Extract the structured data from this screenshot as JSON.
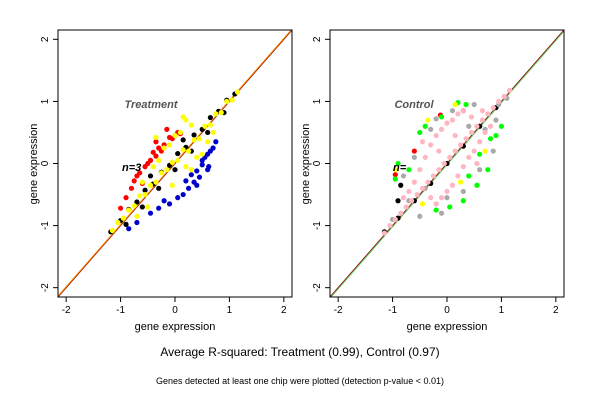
{
  "chart_data": [
    {
      "type": "scatter",
      "title": "Treatment",
      "annotation": "n=3",
      "xlabel": "gene expression",
      "ylabel": "gene expression",
      "xlim": [
        -2.15,
        2.15
      ],
      "ylim": [
        -2.15,
        2.15
      ],
      "xticks": [
        "-2",
        "-1",
        "0",
        "1",
        "2"
      ],
      "yticks": [
        "-2",
        "-1",
        "0",
        "1",
        "2"
      ],
      "xtick_values": [
        -2,
        -1,
        0,
        1,
        2
      ],
      "ytick_values": [
        -2,
        -1,
        0,
        1,
        2
      ],
      "grid": false,
      "reference_lines": [
        {
          "slope": 1,
          "intercept": 0,
          "color": "#8b0000"
        },
        {
          "slope": 1,
          "intercept": 0.015,
          "color": "#ff8c00"
        }
      ],
      "series": [
        {
          "color": "#000000",
          "values": [
            [
              -1.18,
              -1.1
            ],
            [
              -1.0,
              -0.92
            ],
            [
              -0.85,
              -0.74
            ],
            [
              -0.7,
              -0.62
            ],
            [
              -0.55,
              -0.43
            ],
            [
              -0.4,
              -0.33
            ],
            [
              -0.25,
              -0.14
            ],
            [
              -0.1,
              -0.03
            ],
            [
              0.05,
              0.16
            ],
            [
              0.2,
              0.26
            ],
            [
              0.35,
              0.46
            ],
            [
              0.5,
              0.55
            ],
            [
              0.65,
              0.74
            ],
            [
              0.8,
              0.84
            ],
            [
              0.95,
              1.02
            ],
            [
              1.1,
              1.12
            ],
            [
              -0.9,
              -0.98
            ],
            [
              -0.6,
              -0.7
            ],
            [
              -0.3,
              -0.4
            ],
            [
              0.0,
              -0.1
            ],
            [
              0.3,
              0.2
            ],
            [
              0.6,
              0.5
            ],
            [
              0.9,
              0.82
            ],
            [
              -0.45,
              -0.2
            ],
            [
              0.15,
              0.38
            ]
          ]
        },
        {
          "color": "#ff0000",
          "values": [
            [
              -0.75,
              -0.28
            ],
            [
              -0.65,
              -0.15
            ],
            [
              -0.55,
              -0.05
            ],
            [
              -0.45,
              0.05
            ],
            [
              -0.35,
              0.12
            ],
            [
              -0.3,
              0.25
            ],
            [
              -0.2,
              0.3
            ],
            [
              -0.1,
              0.42
            ],
            [
              0.0,
              0.45
            ],
            [
              -0.15,
              0.55
            ],
            [
              -0.05,
              0.4
            ],
            [
              0.1,
              0.48
            ],
            [
              -0.8,
              -0.4
            ],
            [
              -0.6,
              -0.32
            ],
            [
              -0.5,
              0.0
            ],
            [
              -0.25,
              0.2
            ],
            [
              0.05,
              0.5
            ],
            [
              -0.4,
              0.18
            ],
            [
              -0.7,
              -0.2
            ],
            [
              -0.9,
              -0.55
            ],
            [
              -1.0,
              -0.72
            ],
            [
              -0.35,
              0.35
            ]
          ]
        },
        {
          "color": "#0000cd",
          "values": [
            [
              0.2,
              -0.28
            ],
            [
              0.3,
              -0.18
            ],
            [
              0.4,
              -0.12
            ],
            [
              0.5,
              -0.02
            ],
            [
              0.55,
              0.1
            ],
            [
              0.6,
              0.15
            ],
            [
              0.45,
              -0.22
            ],
            [
              0.35,
              -0.3
            ],
            [
              0.65,
              0.2
            ],
            [
              0.7,
              0.25
            ],
            [
              0.5,
              0.05
            ],
            [
              0.25,
              -0.4
            ],
            [
              0.15,
              -0.5
            ],
            [
              0.4,
              -0.35
            ],
            [
              0.6,
              -0.1
            ],
            [
              0.75,
              0.35
            ],
            [
              -0.1,
              -0.65
            ],
            [
              -0.3,
              -0.72
            ],
            [
              -0.45,
              -0.8
            ],
            [
              -0.2,
              -0.6
            ],
            [
              0.05,
              -0.55
            ],
            [
              -0.7,
              -0.95
            ],
            [
              -0.85,
              -1.05
            ],
            [
              0.62,
              -0.05
            ]
          ]
        },
        {
          "color": "#ffff00",
          "values": [
            [
              -1.15,
              -1.08
            ],
            [
              -1.05,
              -0.95
            ],
            [
              -0.95,
              -0.88
            ],
            [
              -0.85,
              -0.75
            ],
            [
              -0.75,
              -0.68
            ],
            [
              -0.65,
              -0.52
            ],
            [
              -0.55,
              -0.5
            ],
            [
              -0.45,
              -0.35
            ],
            [
              -0.35,
              -0.3
            ],
            [
              -0.25,
              -0.15
            ],
            [
              -0.15,
              -0.1
            ],
            [
              -0.05,
              0.02
            ],
            [
              0.05,
              0.05
            ],
            [
              0.15,
              0.22
            ],
            [
              0.25,
              0.2
            ],
            [
              0.35,
              0.38
            ],
            [
              0.45,
              0.4
            ],
            [
              0.55,
              0.6
            ],
            [
              0.65,
              0.62
            ],
            [
              0.75,
              0.8
            ],
            [
              0.85,
              0.82
            ],
            [
              0.95,
              1.0
            ],
            [
              1.05,
              1.02
            ],
            [
              1.15,
              1.15
            ],
            [
              -0.2,
              0.25
            ],
            [
              0.0,
              0.45
            ],
            [
              -0.1,
              0.3
            ],
            [
              0.1,
              0.5
            ],
            [
              0.3,
              0.62
            ],
            [
              0.2,
              0.7
            ],
            [
              -0.3,
              0.05
            ],
            [
              -0.4,
              -0.05
            ],
            [
              -0.6,
              -0.3
            ],
            [
              0.4,
              0.1
            ],
            [
              0.5,
              0.15
            ],
            [
              0.3,
              -0.1
            ],
            [
              -0.5,
              -0.7
            ],
            [
              -0.7,
              -0.85
            ],
            [
              0.6,
              0.35
            ],
            [
              0.7,
              0.5
            ],
            [
              -0.35,
              0.42
            ],
            [
              0.15,
              0.75
            ],
            [
              -0.05,
              -0.35
            ],
            [
              0.2,
              -0.05
            ]
          ]
        }
      ]
    },
    {
      "type": "scatter",
      "title": "Control",
      "annotation": "n=",
      "xlabel": "gene expression",
      "ylabel": "gene expression",
      "xlim": [
        -2.15,
        2.15
      ],
      "ylim": [
        -2.15,
        2.15
      ],
      "xticks": [
        "-2",
        "-1",
        "0",
        "1",
        "2"
      ],
      "yticks": [
        "-2",
        "-1",
        "0",
        "1",
        "2"
      ],
      "xtick_values": [
        -2,
        -1,
        0,
        1,
        2
      ],
      "ytick_values": [
        -2,
        -1,
        0,
        1,
        2
      ],
      "grid": false,
      "reference_lines": [
        {
          "slope": 1,
          "intercept": 0,
          "color": "#8b0000"
        },
        {
          "slope": 1,
          "intercept": -0.02,
          "color": "#66cc66"
        }
      ],
      "series": [
        {
          "color": "#000000",
          "values": [
            [
              -1.15,
              -1.1
            ],
            [
              -0.9,
              -0.88
            ],
            [
              -0.6,
              -0.6
            ],
            [
              -0.3,
              -0.32
            ],
            [
              0.0,
              0.0
            ],
            [
              0.3,
              0.28
            ],
            [
              0.6,
              0.6
            ],
            [
              0.9,
              0.9
            ],
            [
              -0.9,
              -0.6
            ],
            [
              -0.85,
              -0.35
            ]
          ]
        },
        {
          "color": "#ff0000",
          "values": [
            [
              -0.12,
              0.78
            ],
            [
              -0.95,
              -0.18
            ],
            [
              0.3,
              0.85
            ],
            [
              -0.6,
              0.2
            ]
          ]
        },
        {
          "color": "#00ff00",
          "values": [
            [
              0.35,
              0.95
            ],
            [
              -0.1,
              0.75
            ],
            [
              -0.5,
              0.5
            ],
            [
              -0.9,
              0.0
            ],
            [
              0.8,
              0.4
            ],
            [
              0.9,
              0.45
            ],
            [
              0.6,
              0.15
            ],
            [
              0.75,
              -0.1
            ],
            [
              -0.2,
              -0.75
            ],
            [
              0.05,
              -0.7
            ],
            [
              0.4,
              -0.2
            ],
            [
              1.0,
              0.6
            ],
            [
              0.2,
              0.98
            ],
            [
              -0.7,
              -0.1
            ],
            [
              -0.95,
              -0.25
            ],
            [
              0.55,
              -0.35
            ],
            [
              0.3,
              -0.6
            ],
            [
              -0.4,
              0.6
            ]
          ]
        },
        {
          "color": "#ffff00",
          "values": [
            [
              -0.35,
              0.7
            ],
            [
              0.15,
              0.95
            ],
            [
              -0.95,
              -0.1
            ],
            [
              0.7,
              0.2
            ],
            [
              -0.45,
              -0.65
            ],
            [
              0.25,
              -0.3
            ]
          ]
        },
        {
          "color": "#a9a9a9",
          "values": [
            [
              -0.8,
              -0.2
            ],
            [
              -0.6,
              0.1
            ],
            [
              -0.3,
              0.55
            ],
            [
              0.1,
              0.85
            ],
            [
              0.5,
              0.95
            ],
            [
              0.9,
              0.7
            ],
            [
              0.85,
              0.2
            ],
            [
              0.6,
              -0.1
            ],
            [
              0.3,
              -0.45
            ],
            [
              -0.1,
              -0.8
            ],
            [
              -0.5,
              -0.85
            ],
            [
              -0.7,
              -0.6
            ],
            [
              -0.2,
              0.72
            ],
            [
              0.4,
              0.6
            ],
            [
              0.7,
              0.55
            ],
            [
              -0.4,
              -0.4
            ],
            [
              0.0,
              -0.55
            ],
            [
              0.95,
              0.95
            ],
            [
              1.1,
              1.05
            ],
            [
              -1.0,
              -0.9
            ]
          ]
        },
        {
          "color": "#ffb6c1",
          "values": [
            [
              -1.15,
              -1.12
            ],
            [
              -1.05,
              -1.0
            ],
            [
              -0.95,
              -0.9
            ],
            [
              -0.85,
              -0.8
            ],
            [
              -0.75,
              -0.7
            ],
            [
              -0.65,
              -0.6
            ],
            [
              -0.55,
              -0.5
            ],
            [
              -0.45,
              -0.4
            ],
            [
              -0.35,
              -0.3
            ],
            [
              -0.25,
              -0.2
            ],
            [
              -0.15,
              -0.1
            ],
            [
              -0.05,
              0.0
            ],
            [
              0.05,
              0.1
            ],
            [
              0.15,
              0.2
            ],
            [
              0.25,
              0.3
            ],
            [
              0.35,
              0.4
            ],
            [
              0.45,
              0.5
            ],
            [
              0.55,
              0.6
            ],
            [
              0.65,
              0.7
            ],
            [
              0.75,
              0.8
            ],
            [
              0.85,
              0.9
            ],
            [
              0.95,
              1.0
            ],
            [
              1.05,
              1.08
            ],
            [
              1.15,
              1.18
            ],
            [
              -0.6,
              -0.3
            ],
            [
              -0.5,
              -0.1
            ],
            [
              -0.4,
              0.1
            ],
            [
              -0.3,
              0.3
            ],
            [
              -0.2,
              0.45
            ],
            [
              -0.1,
              0.55
            ],
            [
              0.0,
              0.65
            ],
            [
              0.1,
              0.7
            ],
            [
              0.2,
              0.8
            ],
            [
              0.3,
              0.85
            ],
            [
              -0.7,
              -0.45
            ],
            [
              0.6,
              0.35
            ],
            [
              0.5,
              0.2
            ],
            [
              0.4,
              0.1
            ],
            [
              0.3,
              -0.05
            ],
            [
              0.2,
              -0.2
            ],
            [
              0.1,
              -0.35
            ],
            [
              0.0,
              -0.45
            ],
            [
              -0.1,
              -0.55
            ],
            [
              -0.2,
              -0.65
            ],
            [
              0.7,
              0.5
            ],
            [
              0.8,
              0.6
            ],
            [
              -0.8,
              -0.55
            ],
            [
              -0.3,
              -0.55
            ],
            [
              0.45,
              0.75
            ],
            [
              0.65,
              0.85
            ],
            [
              -0.45,
              0.35
            ],
            [
              0.55,
              0.0
            ],
            [
              0.15,
              0.45
            ],
            [
              -0.15,
              0.2
            ]
          ]
        }
      ]
    }
  ],
  "captions": {
    "main": "Average R-squared: Treatment (0.99), Control (0.97)",
    "sub": "Genes detected at least one chip were plotted (detection p-value < 0.01)"
  }
}
